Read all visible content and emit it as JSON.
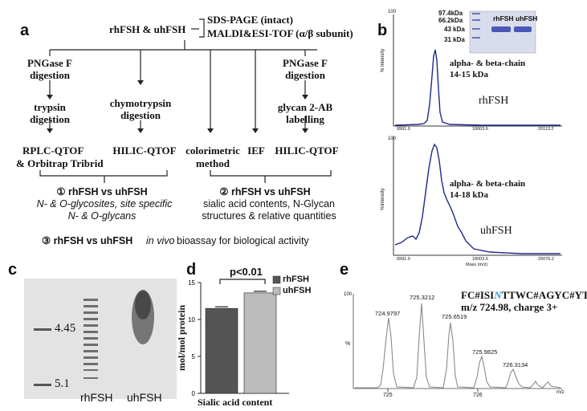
{
  "panel_a": {
    "letter": "a",
    "top_node": "rhFSH & uhFSH",
    "analyses": [
      "SDS-PAGE (intact)",
      "MALDI&ESI-TOF (α/β subunit)"
    ],
    "left_pngase": "PNGase F\ndigestion",
    "right_pngase": "PNGase F\ndigestion",
    "trypsin": "trypsin\ndigestion",
    "chymotrypsin": "chymotrypsin\ndigestion",
    "glycan_label": "glycan 2-AB\nlabelling",
    "methods": [
      "RPLC-QTOF",
      "HILIC-QTOF",
      "colorimetric",
      "IEF",
      "HILIC-QTOF"
    ],
    "method_sub_left": "& Orbitrap Tribrid",
    "method_sub_mid": "method",
    "result1_title": "① rhFSH vs uhFSH",
    "result1_line2": "N- & O-glycosites, site specific",
    "result1_line3": "N- & O-glycans",
    "result2_title": "② rhFSH vs uhFSH",
    "result2_line2": "sialic acid contents, N-Glycan",
    "result2_line3": "structures & relative quantities",
    "result3": "③ rhFSH vs uhFSH",
    "result3_tail_italic": "in vivo",
    "result3_tail": "bioassay for biological activity"
  },
  "panel_b": {
    "letter": "b",
    "gel_markers": [
      "97.4kDa",
      "66.2kDa",
      "43 kDa",
      "31 kDa"
    ],
    "gel_lanes": [
      "rhFSH",
      "uhFSH"
    ],
    "top_label_1": "alpha- & beta-chain",
    "top_label_2": "14-15 kDa",
    "top_sample": "rhFSH",
    "top_xticks": [
      "9991.0",
      "18003.6",
      "20113.2"
    ],
    "top_ytick": "100",
    "top_yaxis": "% Intensity",
    "bottom_label_1": "alpha- & beta-chain",
    "bottom_label_2": "14-18 kDa",
    "bottom_sample": "uhFSH",
    "bottom_xticks": [
      "9991.0",
      "18003.6",
      "20076.2"
    ],
    "bottom_ytick": "100",
    "bottom_yaxis": "%Intensity",
    "xaxis": "Mass (m/z)"
  },
  "panel_c": {
    "letter": "c",
    "pi_markers": [
      "4.45",
      "5.1"
    ],
    "lanes": [
      "rhFSH",
      "uhFSH"
    ]
  },
  "panel_d": {
    "letter": "d",
    "significance": "p<0.01",
    "ylabel": "mol/mol protein",
    "xlabel": "Sialic acid content",
    "yticks": [
      "0",
      "5",
      "10",
      "15"
    ],
    "legend": [
      "rhFSH",
      "uhFSH"
    ]
  },
  "panel_e": {
    "letter": "e",
    "peptide_prefix": "FC#ISI",
    "peptide_n": "N",
    "peptide_suffix": "TTWC#AGYC#YTR",
    "mz_info": "m/z 724.98, charge 3+",
    "peaks": [
      "724.9797",
      "725.3212",
      "725.6519",
      "725.9825",
      "726.3134"
    ],
    "ytick": "100",
    "yaxis": "%",
    "xticks": [
      "725",
      "726"
    ],
    "xunit": "m/z"
  },
  "chart_data": [
    {
      "type": "bar",
      "categories": [
        "rhFSH",
        "uhFSH"
      ],
      "values": [
        11.5,
        13.6
      ],
      "ylabel": "mol/mol protein",
      "xlabel": "Sialic acid content",
      "ylim": [
        0,
        15
      ],
      "colors": {
        "rhFSH": "#555555",
        "uhFSH": "#bbbbbb"
      }
    }
  ]
}
